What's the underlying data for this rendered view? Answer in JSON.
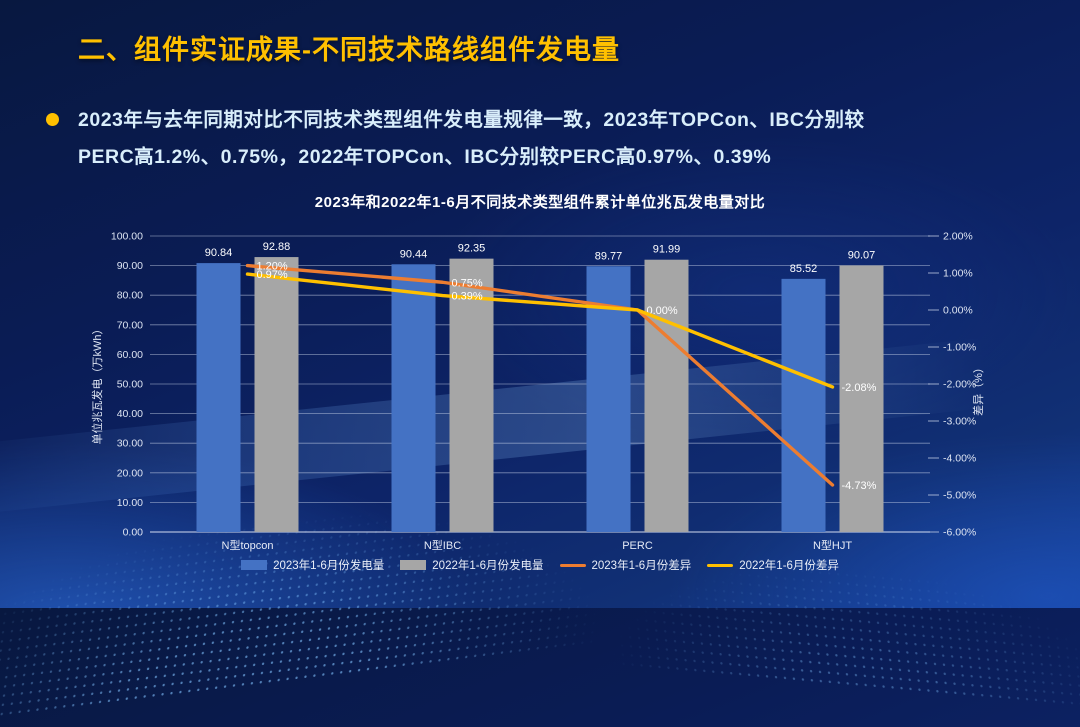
{
  "header": {
    "title": "二、组件实证成果-不同技术路线组件发电量",
    "title_color": "#FFC000"
  },
  "summary": {
    "line1": "2023年与去年同期对比不同技术类型组件发电量规律一致，2023年TOPCon、IBC分别较",
    "line2": "PERC高1.2%、0.75%，2022年TOPCon、IBC分别较PERC高0.97%、0.39%"
  },
  "chart_data": {
    "type": "bar",
    "subtype": "grouped-bars-with-lines-dual-axis",
    "title": "2023年和2022年1-6月不同技术类型组件累计单位兆瓦发电量对比",
    "categories": [
      "N型topcon",
      "N型IBC",
      "PERC",
      "N型HJT"
    ],
    "bar_series": [
      {
        "name": "2023年1-6月份发电量",
        "color": "#4472C4",
        "values": [
          90.84,
          90.44,
          89.77,
          85.52
        ]
      },
      {
        "name": "2022年1-6月份发电量",
        "color": "#A6A6A6",
        "values": [
          92.88,
          92.35,
          91.99,
          90.07
        ]
      }
    ],
    "line_series": [
      {
        "name": "2023年1-6月份差异",
        "color": "#ED7D31",
        "values": [
          1.2,
          0.75,
          0.0,
          -4.73
        ],
        "labels": [
          "1.20%",
          "0.75%",
          "0.00%",
          "-4.73%"
        ]
      },
      {
        "name": "2022年1-6月份差异",
        "color": "#FFC000",
        "values": [
          0.97,
          0.39,
          0.0,
          -2.08
        ],
        "labels": [
          "0.97%",
          "0.39%",
          null,
          "-2.08%"
        ]
      }
    ],
    "left_axis": {
      "label": "单位兆瓦发电（万kWh）",
      "min": 0,
      "max": 100,
      "step": 10
    },
    "right_axis": {
      "label": "差异（%）",
      "min": -6,
      "max": 2,
      "step": 1
    },
    "grid": true,
    "legend_position": "bottom"
  }
}
